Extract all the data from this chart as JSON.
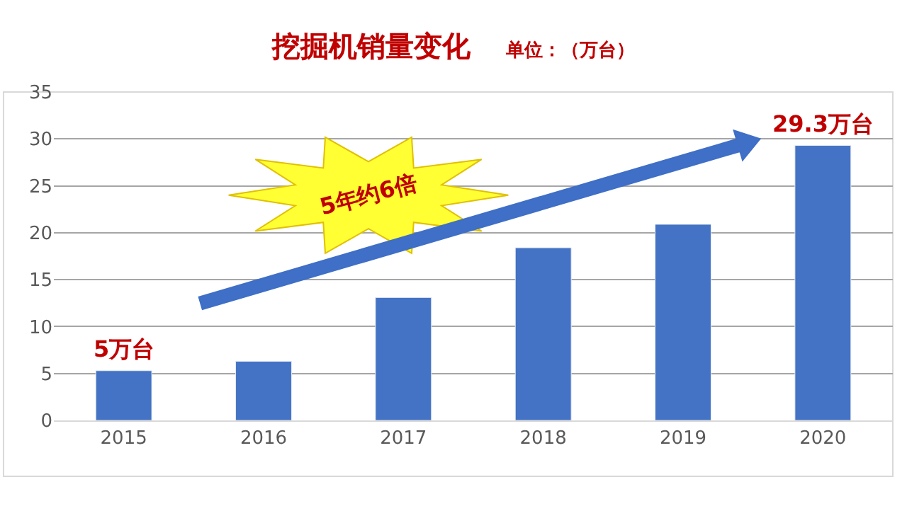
{
  "chart_data": {
    "type": "bar",
    "title": "挖掘机销量变化",
    "subtitle": "单位：（万台）",
    "categories": [
      "2015",
      "2016",
      "2017",
      "2018",
      "2019",
      "2020"
    ],
    "values": [
      5.3,
      6.3,
      13.1,
      18.4,
      20.9,
      29.3
    ],
    "color": "#4472c4",
    "ylim": [
      0,
      35
    ],
    "yticks": [
      0,
      5,
      10,
      15,
      20,
      25,
      30,
      35
    ],
    "grid": "y",
    "annotations": [
      {
        "text": "5万台",
        "x": "2015",
        "y": 5.3
      },
      {
        "text": "29.3万台",
        "x": "2020",
        "y": 29.3
      },
      "5年约6倍"
    ]
  }
}
